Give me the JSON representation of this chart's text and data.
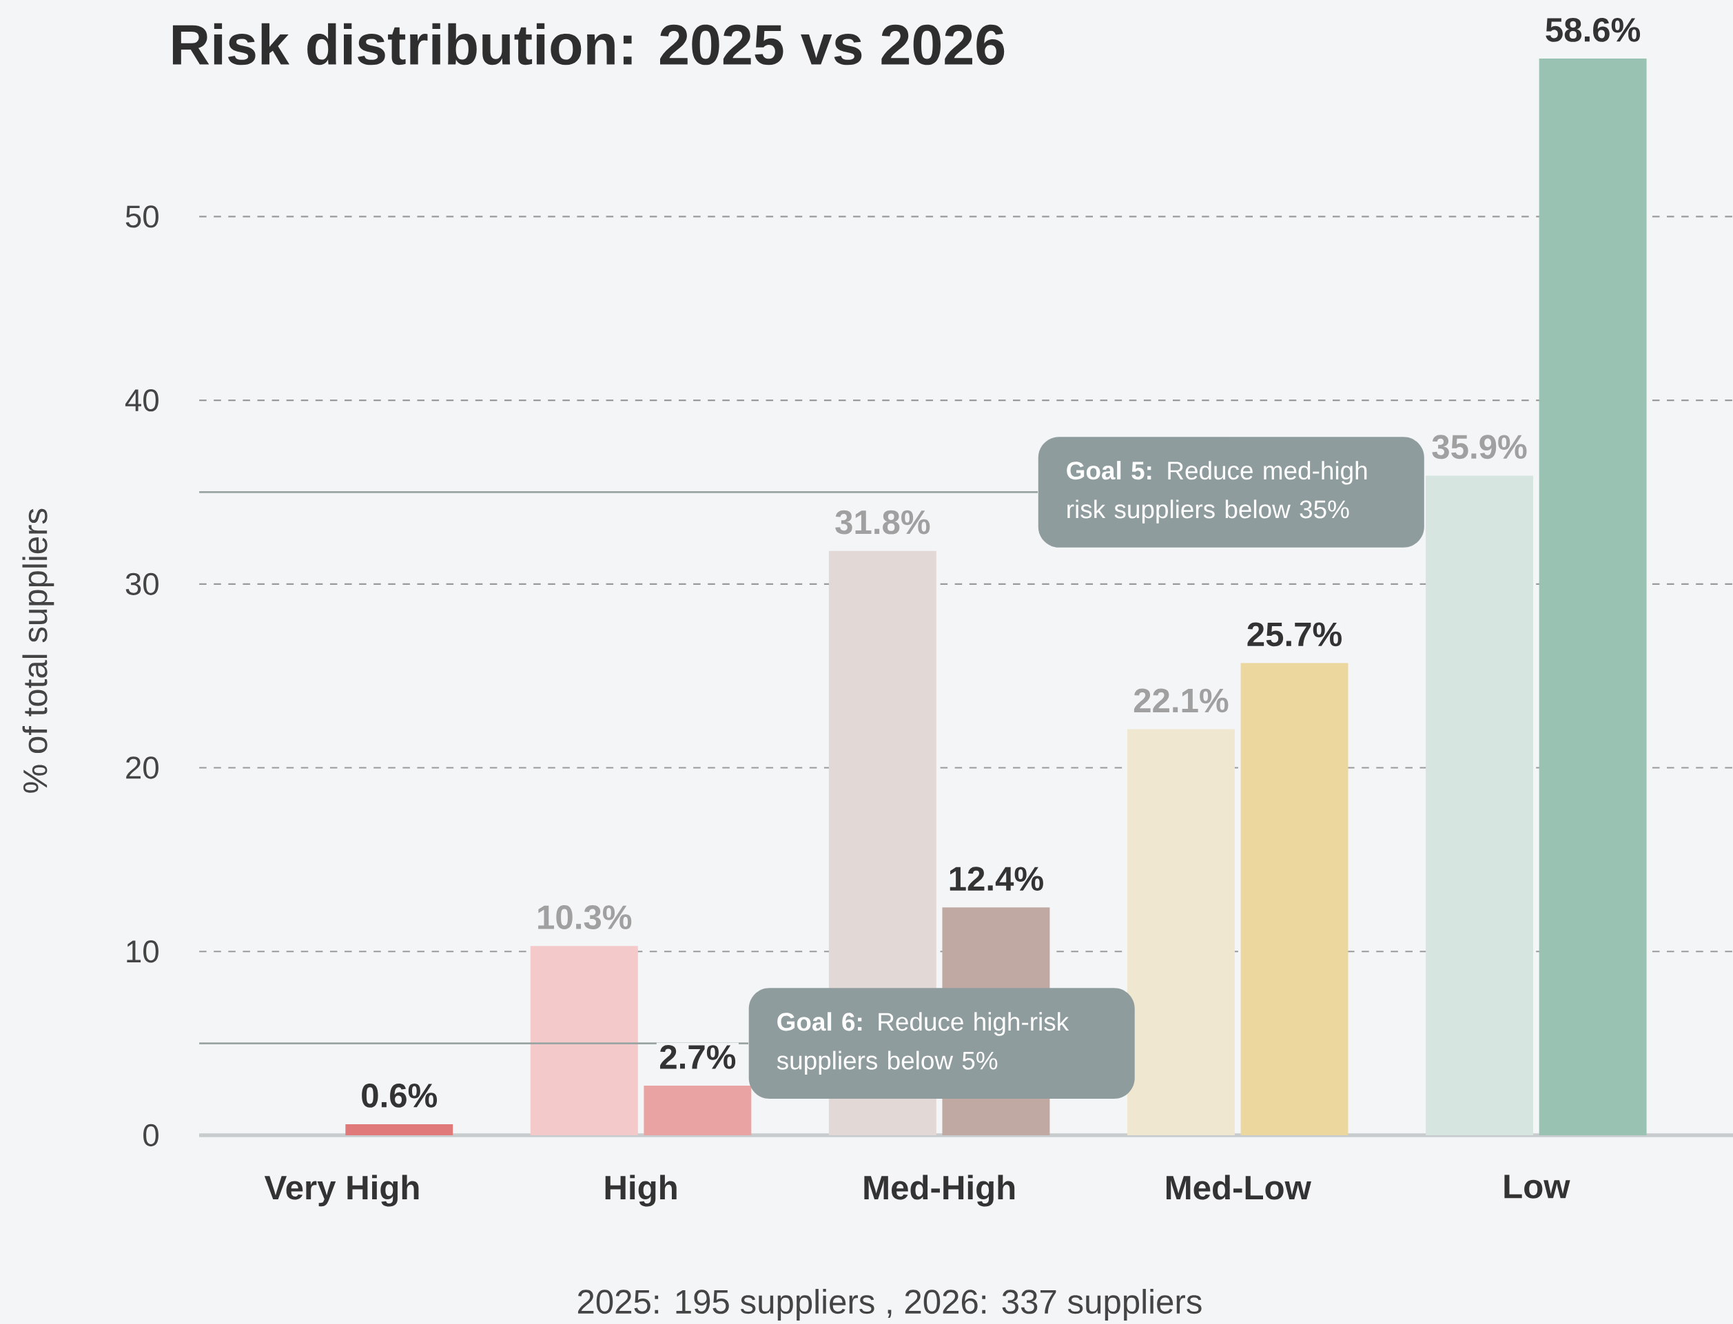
{
  "chart_data": {
    "type": "bar",
    "title": "Risk distribution: 2025 vs 2026",
    "ylabel": "% of total suppliers",
    "categories": [
      "Very High",
      "High",
      "Med-High",
      "Med-Low",
      "Low"
    ],
    "series": [
      {
        "values": [
          null,
          10.3,
          31.8,
          22.1,
          35.9
        ],
        "colors": [
          null,
          "#f4c9c9",
          "#e2d8d5",
          "#efe7cf",
          "#d6e5e0"
        ],
        "value_labels": [
          null,
          "10.3%",
          "31.8%",
          "22.1%",
          "35.9%"
        ]
      },
      {
        "values": [
          0.6,
          2.7,
          12.4,
          25.7,
          58.6
        ],
        "colors": [
          "#e07a7a",
          "#eaa3a3",
          "#c0a8a3",
          "#ecd89f",
          "#99c2b3"
        ],
        "value_labels": [
          "0.6%",
          "2.7%",
          "12.4%",
          "25.7%",
          "58.6%"
        ]
      }
    ],
    "ylim": [
      0,
      58.6
    ],
    "yticks": [
      0,
      10,
      20,
      30,
      40,
      50
    ],
    "grid": "y",
    "ref_lines": [
      {
        "axis": "y",
        "value": 35,
        "label": "**Goal 5:** Reduce med-high risk suppliers below 35%",
        "color": "#9aa5a3"
      },
      {
        "axis": "y",
        "value": 5,
        "label": "**Goal 6:** Reduce high-risk suppliers below 5%",
        "color": "#9aa5a3"
      }
    ],
    "annotations": [
      "2025: 195 suppliers , 2026: 337 suppliers"
    ]
  }
}
